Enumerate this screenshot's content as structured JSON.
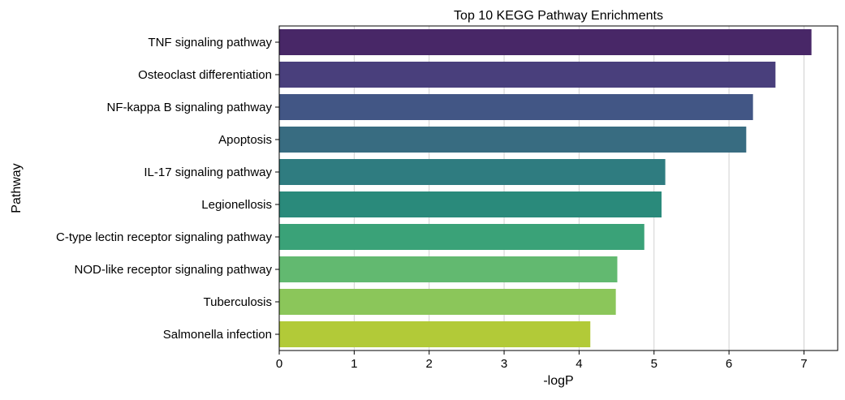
{
  "chart_data": {
    "type": "bar",
    "orientation": "horizontal",
    "title": "Top 10 KEGG Pathway Enrichments",
    "xlabel": "-logP",
    "ylabel": "Pathway",
    "xlim": [
      0,
      7.45
    ],
    "xticks": [
      0,
      1,
      2,
      3,
      4,
      5,
      6,
      7
    ],
    "grid": "vertical",
    "categories": [
      "TNF signaling pathway",
      "Osteoclast differentiation",
      "NF-kappa B signaling pathway",
      "Apoptosis",
      "IL-17 signaling pathway",
      "Legionellosis",
      "C-type lectin receptor signaling pathway",
      "NOD-like receptor signaling pathway",
      "Tuberculosis",
      "Salmonella infection"
    ],
    "values": [
      7.1,
      6.62,
      6.32,
      6.23,
      5.15,
      5.1,
      4.87,
      4.51,
      4.49,
      4.15
    ],
    "colors": [
      "#482767",
      "#493F7C",
      "#425685",
      "#386C81",
      "#2F7C80",
      "#2A8A7B",
      "#3AA278",
      "#62B970",
      "#8BC65A",
      "#B2CA38"
    ]
  }
}
